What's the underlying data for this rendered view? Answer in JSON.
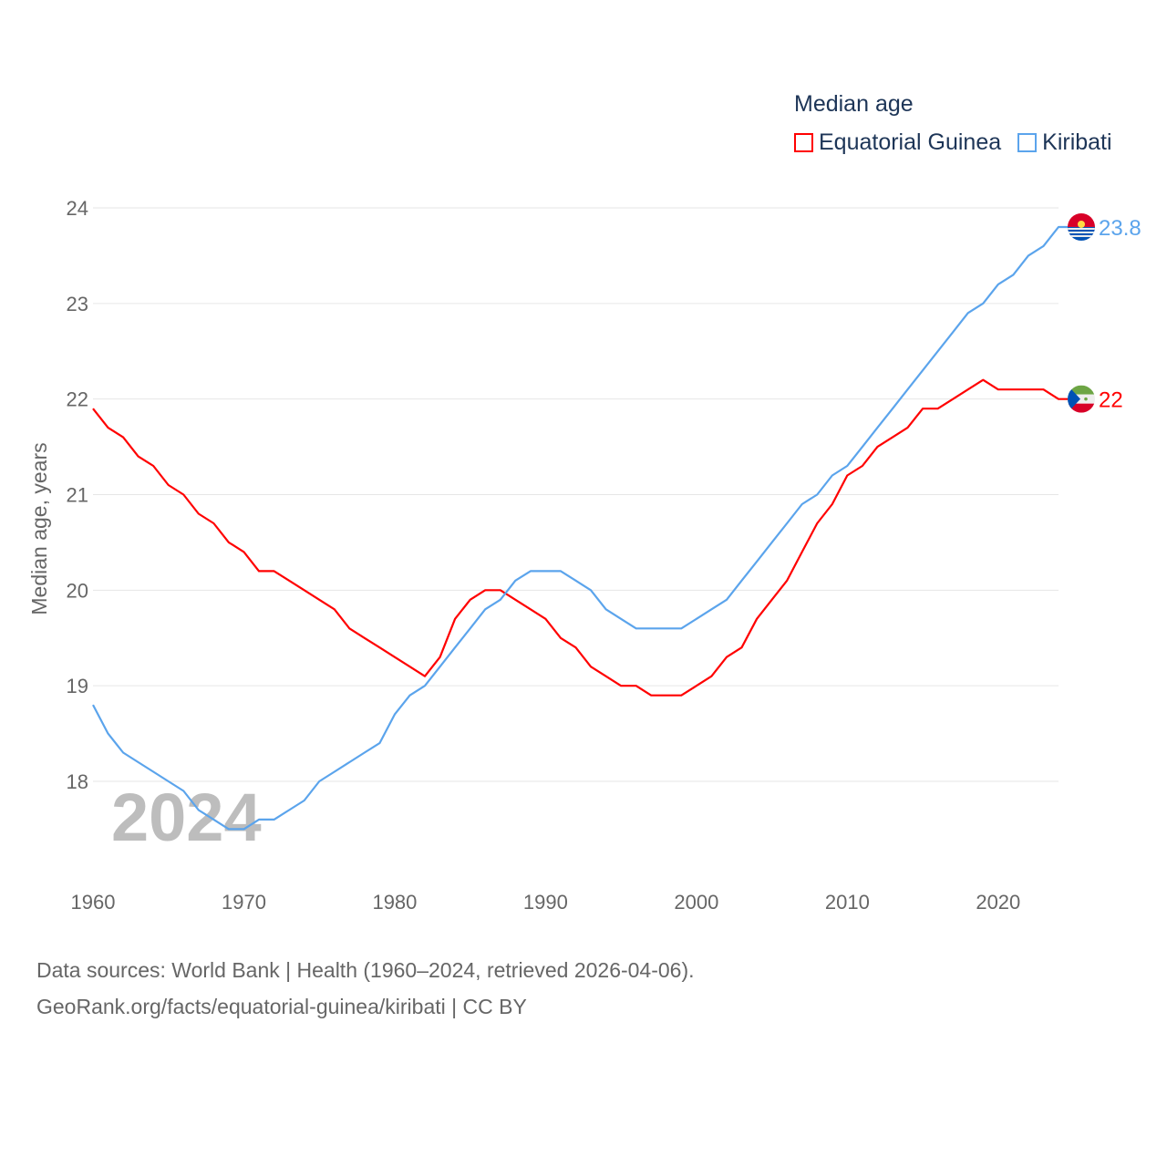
{
  "chart_data": {
    "type": "line",
    "title": "Median age",
    "ylabel": "Median age, years",
    "xlabel": "",
    "xlim": [
      1960,
      2024
    ],
    "ylim": [
      17.1,
      24
    ],
    "x_ticks": [
      1960,
      1970,
      1980,
      1990,
      2000,
      2010,
      2020
    ],
    "y_ticks": [
      18,
      19,
      20,
      21,
      22,
      23,
      24
    ],
    "grid": true,
    "legend_position": "top-right",
    "watermark_year": "2024",
    "x": [
      1960,
      1961,
      1962,
      1963,
      1964,
      1965,
      1966,
      1967,
      1968,
      1969,
      1970,
      1971,
      1972,
      1973,
      1974,
      1975,
      1976,
      1977,
      1978,
      1979,
      1980,
      1981,
      1982,
      1983,
      1984,
      1985,
      1986,
      1987,
      1988,
      1989,
      1990,
      1991,
      1992,
      1993,
      1994,
      1995,
      1996,
      1997,
      1998,
      1999,
      2000,
      2001,
      2002,
      2003,
      2004,
      2005,
      2006,
      2007,
      2008,
      2009,
      2010,
      2011,
      2012,
      2013,
      2014,
      2015,
      2016,
      2017,
      2018,
      2019,
      2020,
      2021,
      2022,
      2023,
      2024
    ],
    "series": [
      {
        "name": "Equatorial Guinea",
        "color": "#ff0000",
        "end_label": "22",
        "values": [
          21.9,
          21.7,
          21.6,
          21.4,
          21.3,
          21.1,
          21.0,
          20.8,
          20.7,
          20.5,
          20.4,
          20.2,
          20.2,
          20.1,
          20.0,
          19.9,
          19.8,
          19.6,
          19.5,
          19.4,
          19.3,
          19.2,
          19.1,
          19.3,
          19.7,
          19.9,
          20.0,
          20.0,
          19.9,
          19.8,
          19.7,
          19.5,
          19.4,
          19.2,
          19.1,
          19.0,
          19.0,
          18.9,
          18.9,
          18.9,
          19.0,
          19.1,
          19.3,
          19.4,
          19.7,
          19.9,
          20.1,
          20.4,
          20.7,
          20.9,
          21.2,
          21.3,
          21.5,
          21.6,
          21.7,
          21.9,
          21.9,
          22.0,
          22.1,
          22.2,
          22.1,
          22.1,
          22.1,
          22.1,
          22.0
        ]
      },
      {
        "name": "Kiribati",
        "color": "#5ba4ec",
        "end_label": "23.8",
        "values": [
          18.8,
          18.5,
          18.3,
          18.2,
          18.1,
          18.0,
          17.9,
          17.7,
          17.6,
          17.5,
          17.5,
          17.6,
          17.6,
          17.7,
          17.8,
          18.0,
          18.1,
          18.2,
          18.3,
          18.4,
          18.7,
          18.9,
          19.0,
          19.2,
          19.4,
          19.6,
          19.8,
          19.9,
          20.1,
          20.2,
          20.2,
          20.2,
          20.1,
          20.0,
          19.8,
          19.7,
          19.6,
          19.6,
          19.6,
          19.6,
          19.7,
          19.8,
          19.9,
          20.1,
          20.3,
          20.5,
          20.7,
          20.9,
          21.0,
          21.2,
          21.3,
          21.5,
          21.7,
          21.9,
          22.1,
          22.3,
          22.5,
          22.7,
          22.9,
          23.0,
          23.2,
          23.3,
          23.5,
          23.6,
          23.8
        ]
      }
    ]
  },
  "footer": {
    "line1": "Data sources: World Bank | Health (1960–2024, retrieved 2026-04-06).",
    "line2": "GeoRank.org/facts/equatorial-guinea/kiribati | CC BY"
  }
}
